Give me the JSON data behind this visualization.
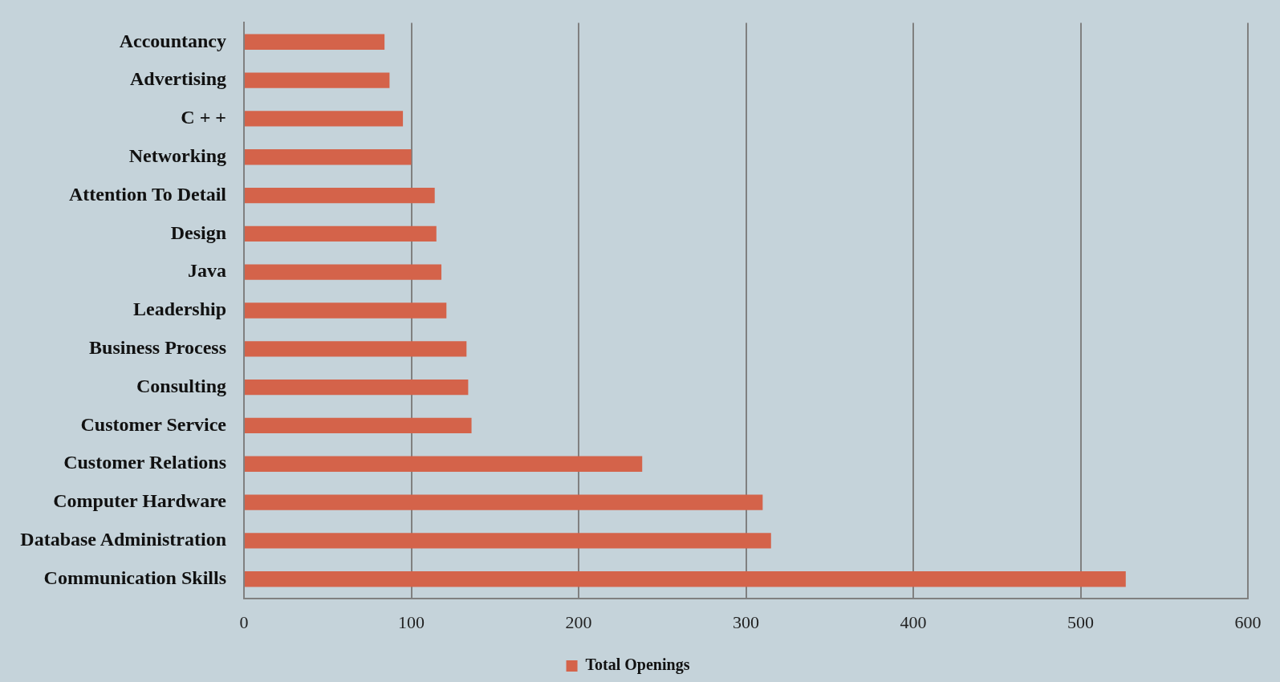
{
  "chart_data": {
    "type": "bar",
    "orientation": "horizontal",
    "categories": [
      "Accountancy",
      "Advertising",
      "C + +",
      "Networking",
      "Attention To Detail",
      "Design",
      "Java",
      "Leadership",
      "Business Process",
      "Consulting",
      "Customer Service",
      "Customer Relations",
      "Computer Hardware",
      "Database Administration",
      "Communication Skills"
    ],
    "series": [
      {
        "name": "Total Openings",
        "color": "#d4634a",
        "values": [
          84,
          87,
          95,
          100,
          114,
          115,
          118,
          121,
          133,
          134,
          136,
          238,
          310,
          315,
          527
        ]
      }
    ],
    "xlim": [
      0,
      600
    ],
    "xticks": [
      0,
      100,
      200,
      300,
      400,
      500,
      600
    ],
    "grid": "x",
    "legend": "bottom"
  }
}
